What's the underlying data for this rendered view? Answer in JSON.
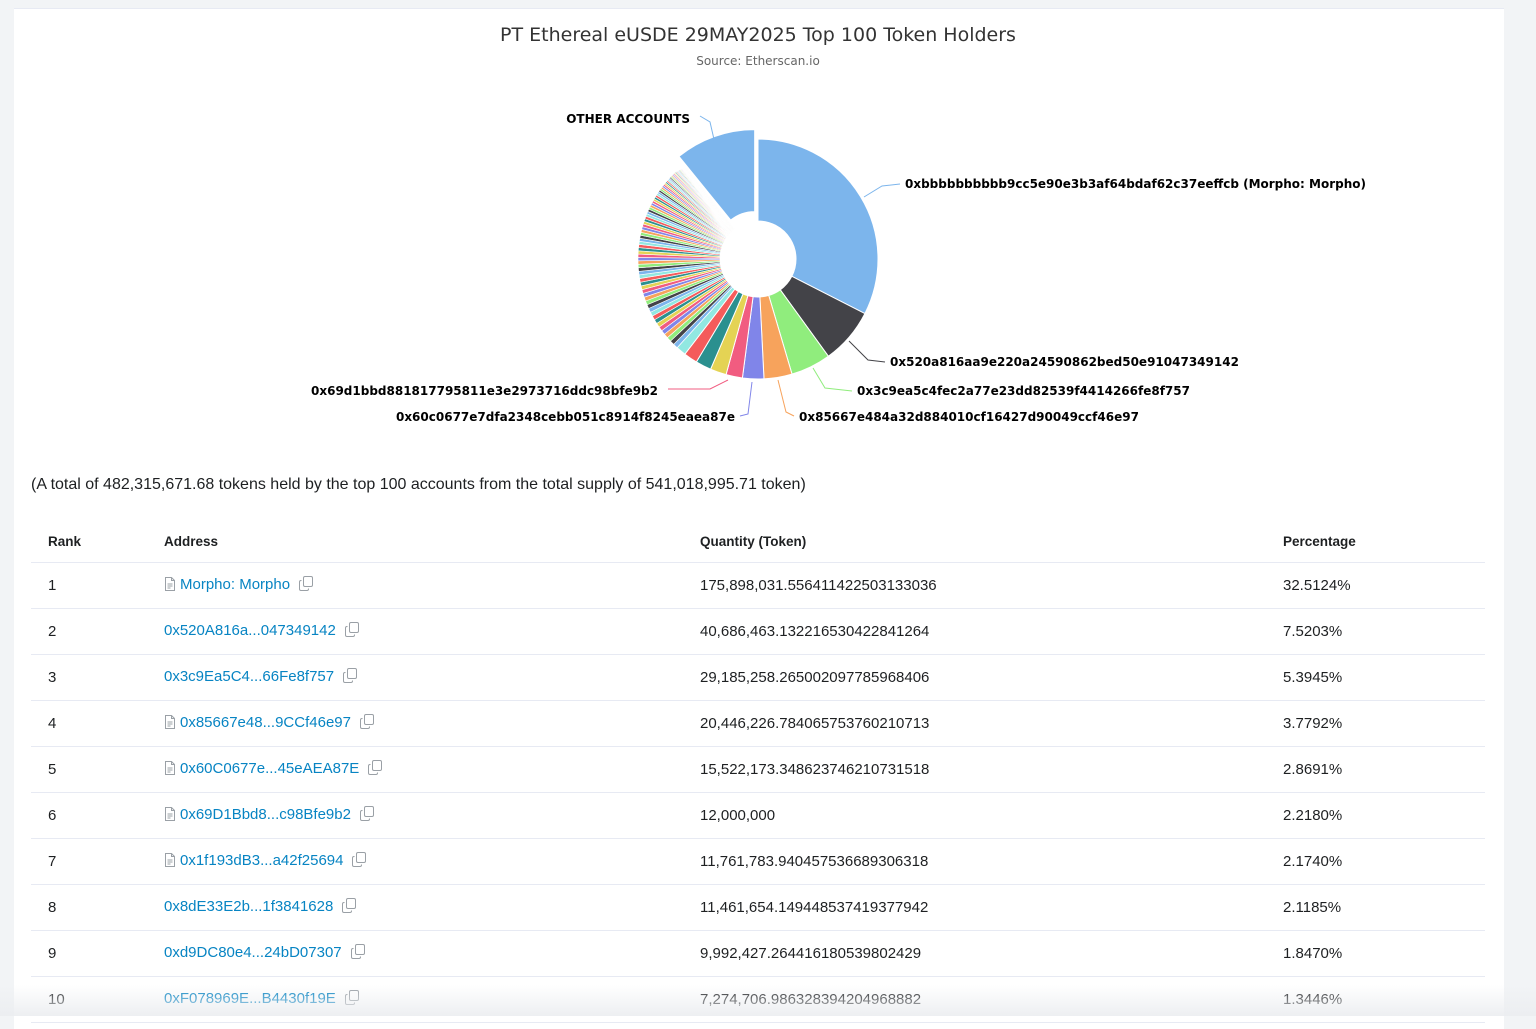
{
  "chart": {
    "title": "PT Ethereal eUSDE 29MAY2025 Top 100 Token Holders",
    "subtitle": "Source: Etherscan.io"
  },
  "chart_data": {
    "type": "pie",
    "variant": "donut",
    "slices": [
      {
        "label": "0xbbbbbbbbbb9cc5e90e3b3af64bdaf62c37eeffcb (Morpho: Morpho)",
        "value": 32.5124,
        "color": "#7cb5ec"
      },
      {
        "label": "0x520a816aa9e220a24590862bed50e91047349142",
        "value": 7.5203,
        "color": "#434348"
      },
      {
        "label": "0x3c9ea5c4fec2a77e23dd82539f4414266fe8f757",
        "value": 5.3945,
        "color": "#90ed7d"
      },
      {
        "label": "0x85667e484a32d884010cf16427d90049ccf46e97",
        "value": 3.7792,
        "color": "#f7a35c"
      },
      {
        "label": "0x60c0677e7dfa2348cebb051c8914f8245eaea87e",
        "value": 2.8691,
        "color": "#8085e9"
      },
      {
        "label": "0x69d1bbd881817795811e3e2973716ddc98bfe9b2",
        "value": 2.218,
        "color": "#f15c80"
      },
      {
        "label": "",
        "value": 2.174,
        "color": "#e4d354"
      },
      {
        "label": "",
        "value": 2.1185,
        "color": "#2b908f"
      },
      {
        "label": "",
        "value": 1.847,
        "color": "#f45b5b"
      },
      {
        "label": "",
        "value": 1.3446,
        "color": "#91e8e1"
      },
      {
        "label": "OTHER ACCOUNTS",
        "value": 10.85,
        "color": "#7cb5ec"
      }
    ],
    "small_slice_colors": [
      "#7cb5ec",
      "#434348",
      "#90ed7d",
      "#f7a35c",
      "#8085e9",
      "#f15c80",
      "#e4d354",
      "#2b908f",
      "#f45b5b",
      "#91e8e1"
    ]
  },
  "summary": "(A total of 482,315,671.68 tokens held by the top 100 accounts from the total supply of 541,018,995.71 token)",
  "table": {
    "headers": {
      "rank": "Rank",
      "address": "Address",
      "quantity": "Quantity (Token)",
      "percentage": "Percentage"
    },
    "rows": [
      {
        "rank": "1",
        "address": "Morpho: Morpho",
        "contract": true,
        "quantity": "175,898,031.556411422503133036",
        "percentage": "32.5124%"
      },
      {
        "rank": "2",
        "address": "0x520A816a...047349142",
        "contract": false,
        "quantity": "40,686,463.132216530422841264",
        "percentage": "7.5203%"
      },
      {
        "rank": "3",
        "address": "0x3c9Ea5C4...66Fe8f757",
        "contract": false,
        "quantity": "29,185,258.265002097785968406",
        "percentage": "5.3945%"
      },
      {
        "rank": "4",
        "address": "0x85667e48...9CCf46e97",
        "contract": true,
        "quantity": "20,446,226.784065753760210713",
        "percentage": "3.7792%"
      },
      {
        "rank": "5",
        "address": "0x60C0677e...45eAEA87E",
        "contract": true,
        "quantity": "15,522,173.348623746210731518",
        "percentage": "2.8691%"
      },
      {
        "rank": "6",
        "address": "0x69D1Bbd8...c98Bfe9b2",
        "contract": true,
        "quantity": "12,000,000",
        "percentage": "2.2180%"
      },
      {
        "rank": "7",
        "address": "0x1f193dB3...a42f25694",
        "contract": true,
        "quantity": "11,761,783.940457536689306318",
        "percentage": "2.1740%"
      },
      {
        "rank": "8",
        "address": "0x8dE33E2b...1f3841628",
        "contract": false,
        "quantity": "11,461,654.149448537419377942",
        "percentage": "2.1185%"
      },
      {
        "rank": "9",
        "address": "0xd9DC80e4...24bD07307",
        "contract": false,
        "quantity": "9,992,427.264416180539802429",
        "percentage": "1.8470%"
      },
      {
        "rank": "10",
        "address": "0xF078969E...B4430f19E",
        "contract": false,
        "quantity": "7,274,706.986328394204968882",
        "percentage": "1.3446%"
      }
    ]
  }
}
